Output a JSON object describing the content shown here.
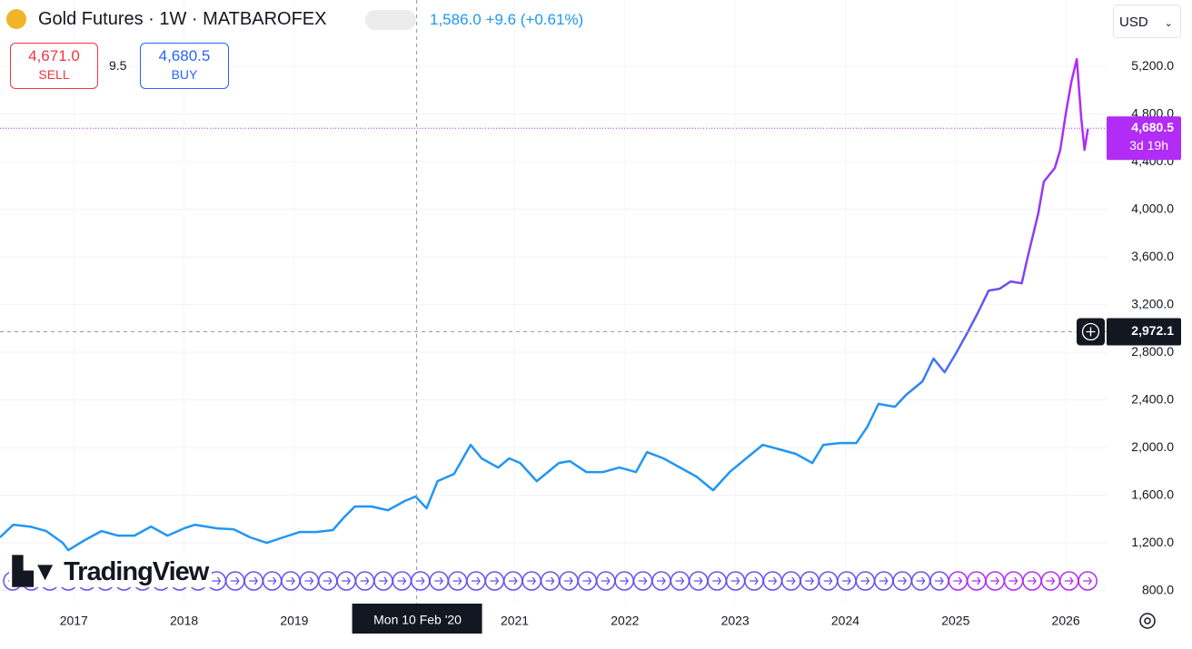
{
  "header": {
    "title": "Gold Futures · 1W · MATBAROFEX",
    "price": "1,586.0",
    "change": "+9.6",
    "change_pct": "(+0.61%)",
    "currency": "USD",
    "brand": "TradingView"
  },
  "trade": {
    "sell_price": "4,671.0",
    "sell_label": "SELL",
    "spread": "9.5",
    "buy_price": "4,680.5",
    "buy_label": "BUY"
  },
  "chart_data": {
    "type": "line",
    "x": [
      2016.33,
      2016.45,
      2016.6,
      2016.75,
      2016.9,
      2016.95,
      2017.1,
      2017.25,
      2017.4,
      2017.55,
      2017.7,
      2017.85,
      2018.0,
      2018.1,
      2018.3,
      2018.45,
      2018.6,
      2018.75,
      2018.9,
      2019.05,
      2019.2,
      2019.35,
      2019.45,
      2019.55,
      2019.7,
      2019.85,
      2020.0,
      2020.1,
      2020.2,
      2020.3,
      2020.45,
      2020.6,
      2020.7,
      2020.85,
      2020.95,
      2021.05,
      2021.2,
      2021.4,
      2021.5,
      2021.65,
      2021.8,
      2021.95,
      2022.1,
      2022.2,
      2022.35,
      2022.5,
      2022.65,
      2022.8,
      2022.95,
      2023.1,
      2023.25,
      2023.4,
      2023.55,
      2023.7,
      2023.8,
      2023.95,
      2024.1,
      2024.2,
      2024.3,
      2024.45,
      2024.55,
      2024.7,
      2024.8,
      2024.9,
      2025.0,
      2025.1,
      2025.2,
      2025.3,
      2025.4,
      2025.5,
      2025.6,
      2025.65,
      2025.75,
      2025.8,
      2025.9,
      2025.95,
      2026.0,
      2026.05,
      2026.1,
      2026.14,
      2026.17,
      2026.2
    ],
    "values": [
      1246,
      1352,
      1337,
      1299,
      1200,
      1139,
      1223,
      1299,
      1261,
      1261,
      1337,
      1261,
      1322,
      1352,
      1322,
      1314,
      1246,
      1200,
      1246,
      1291,
      1291,
      1307,
      1413,
      1505,
      1505,
      1474,
      1550,
      1589,
      1490,
      1718,
      1779,
      2023,
      1909,
      1832,
      1909,
      1870,
      1718,
      1870,
      1886,
      1794,
      1794,
      1832,
      1794,
      1962,
      1909,
      1832,
      1756,
      1642,
      1794,
      1909,
      2023,
      1985,
      1947,
      1870,
      2023,
      2038,
      2038,
      2175,
      2366,
      2343,
      2442,
      2556,
      2747,
      2632,
      2785,
      2952,
      3128,
      3318,
      3333,
      3394,
      3379,
      3585,
      3966,
      4232,
      4347,
      4499,
      4804,
      5070,
      5261,
      4766,
      4499,
      4674
    ],
    "colors": [
      "#2196f3",
      "#6a4ff0",
      "#b12cf5"
    ],
    "xlim": [
      2016.33,
      2026.37
    ],
    "ylim": [
      690,
      5757
    ],
    "xticks": [
      2017,
      2018,
      2019,
      2021,
      2022,
      2023,
      2024,
      2025,
      2026
    ],
    "yticks": [
      {
        "value": 800,
        "label": "800.0"
      },
      {
        "value": 1200,
        "label": "1,200.0"
      },
      {
        "value": 1600,
        "label": "1,600.0"
      },
      {
        "value": 2000,
        "label": "2,000.0"
      },
      {
        "value": 2400,
        "label": "2,400.0"
      },
      {
        "value": 2800,
        "label": "2,800.0"
      },
      {
        "value": 3200,
        "label": "3,200.0"
      },
      {
        "value": 3600,
        "label": "3,600.0"
      },
      {
        "value": 4000,
        "label": "4,000.0"
      },
      {
        "value": 4400,
        "label": "4,400.0"
      },
      {
        "value": 4800,
        "label": "4,800.0"
      },
      {
        "value": 5200,
        "label": "5,200.0"
      }
    ],
    "grid": true,
    "last_price": {
      "value": 4680.5,
      "label": "4,680.5"
    },
    "countdown": "3d 19h",
    "crosshair": {
      "x": 2020.11,
      "date_label": "Mon 10 Feb '20",
      "value": 2972.1,
      "label": "2,972.1"
    }
  }
}
